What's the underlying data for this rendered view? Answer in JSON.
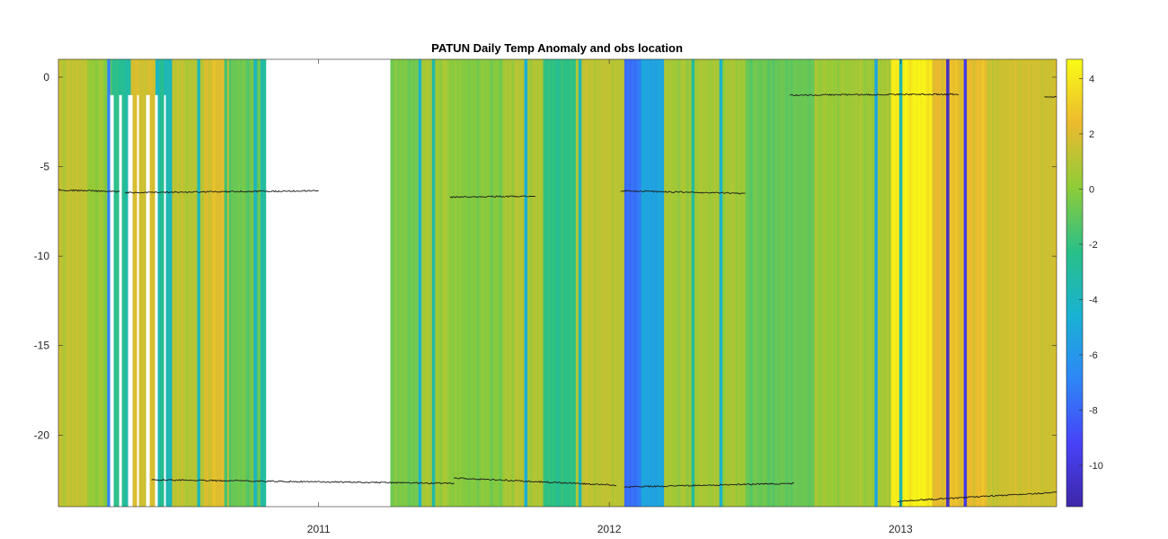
{
  "chart_data": {
    "type": "heatmap",
    "title": "PATUN Daily Temp Anomaly and obs location",
    "xlabel": "",
    "ylabel": "",
    "xlim": [
      "2010-02-08",
      "2013-07-16"
    ],
    "ylim": [
      -24,
      1
    ],
    "x_ticks": [
      {
        "date": "2011-01-01",
        "label": "2011"
      },
      {
        "date": "2012-01-01",
        "label": "2012"
      },
      {
        "date": "2013-01-01",
        "label": "2013"
      }
    ],
    "y_ticks": [
      0,
      -5,
      -10,
      -15,
      -20
    ],
    "colorbar": {
      "colormap": "parula",
      "range": [
        -11.5,
        4.7
      ],
      "ticks": [
        4,
        2,
        0,
        -2,
        -4,
        -6,
        -8,
        -10
      ],
      "colors": [
        "#3e26a8",
        "#4743f8",
        "#2e87f7",
        "#19b2d3",
        "#29c087",
        "#90cc38",
        "#ecba2e",
        "#f9fb15"
      ]
    },
    "anomaly_bands": [
      {
        "start": "2010-02-08",
        "end": "2010-03-15",
        "value": 1.2
      },
      {
        "start": "2010-03-15",
        "end": "2010-04-15",
        "value": 0.2
      },
      {
        "start": "2010-04-15",
        "end": "2010-05-10",
        "value": -2.6
      },
      {
        "start": "2010-05-10",
        "end": "2010-06-10",
        "value": 1.8
      },
      {
        "start": "2010-06-10",
        "end": "2010-07-01",
        "value": -3.5
      },
      {
        "start": "2010-07-01",
        "end": "2010-08-10",
        "value": 1.0
      },
      {
        "start": "2010-08-10",
        "end": "2010-09-10",
        "value": 2.0
      },
      {
        "start": "2010-09-10",
        "end": "2010-10-20",
        "value": -0.8
      },
      {
        "start": "2010-10-20",
        "end": "2010-10-27",
        "value": -3.0
      },
      {
        "start": "2011-04-01",
        "end": "2011-05-10",
        "value": -0.5
      },
      {
        "start": "2011-05-10",
        "end": "2011-06-15",
        "value": 0.5
      },
      {
        "start": "2011-06-15",
        "end": "2011-08-20",
        "value": -0.2
      },
      {
        "start": "2011-08-20",
        "end": "2011-10-10",
        "value": 0.8
      },
      {
        "start": "2011-10-10",
        "end": "2011-11-20",
        "value": -2.2
      },
      {
        "start": "2011-11-20",
        "end": "2012-01-20",
        "value": 1.2
      },
      {
        "start": "2012-01-20",
        "end": "2012-02-10",
        "value": -7.5
      },
      {
        "start": "2012-02-10",
        "end": "2012-03-10",
        "value": -5.2
      },
      {
        "start": "2012-03-10",
        "end": "2012-06-20",
        "value": 0.6
      },
      {
        "start": "2012-06-20",
        "end": "2012-09-15",
        "value": -0.8
      },
      {
        "start": "2012-09-15",
        "end": "2012-12-20",
        "value": 0.4
      },
      {
        "start": "2012-12-20",
        "end": "2013-02-10",
        "value": 4.2
      },
      {
        "start": "2013-02-10",
        "end": "2013-04-20",
        "value": 2.3
      },
      {
        "start": "2013-04-20",
        "end": "2013-07-16",
        "value": 1.6
      }
    ],
    "thin_stripes": [
      {
        "date": "2010-04-12",
        "value": -7.0
      },
      {
        "date": "2010-05-05",
        "value": -3.2
      },
      {
        "date": "2010-06-18",
        "value": -2.5
      },
      {
        "date": "2010-08-03",
        "value": -3.6
      },
      {
        "date": "2010-09-06",
        "value": -1.6
      },
      {
        "date": "2010-10-13",
        "value": -4.0
      },
      {
        "date": "2011-05-08",
        "value": -4.1
      },
      {
        "date": "2011-05-25",
        "value": -3.2
      },
      {
        "date": "2011-09-18",
        "value": -4.6
      },
      {
        "date": "2011-11-25",
        "value": -3.8
      },
      {
        "date": "2012-04-15",
        "value": -2.8
      },
      {
        "date": "2012-05-20",
        "value": -4.2
      },
      {
        "date": "2012-12-01",
        "value": -5.3
      },
      {
        "date": "2013-01-01",
        "value": -3.5
      },
      {
        "date": "2013-03-01",
        "value": -10.6
      },
      {
        "date": "2013-03-23",
        "value": -9.8
      }
    ],
    "missing_data": [
      {
        "start": "2010-10-27",
        "end": "2011-04-01",
        "y_top": 1,
        "y_bottom": -24
      },
      {
        "start": "2010-04-14",
        "end": "2010-06-24",
        "y_top": -1,
        "y_bottom": -24
      }
    ],
    "obs_location_series": [
      {
        "start": "2010-02-08",
        "end": "2010-04-26",
        "y_start": -6.3,
        "y_end": -6.4
      },
      {
        "start": "2010-05-03",
        "end": "2011-01-01",
        "y_start": -6.45,
        "y_end": -6.35
      },
      {
        "start": "2011-06-15",
        "end": "2011-09-30",
        "y_start": -6.7,
        "y_end": -6.65
      },
      {
        "start": "2012-01-15",
        "end": "2012-06-20",
        "y_start": -6.35,
        "y_end": -6.5
      },
      {
        "start": "2012-08-15",
        "end": "2013-03-15",
        "y_start": -1.0,
        "y_end": -0.95
      },
      {
        "start": "2013-07-01",
        "end": "2013-07-16",
        "y_start": -1.1,
        "y_end": -1.1
      },
      {
        "start": "2010-06-05",
        "end": "2011-06-20",
        "y_start": -22.5,
        "y_end": -22.7
      },
      {
        "start": "2011-06-20",
        "end": "2012-01-10",
        "y_start": -22.4,
        "y_end": -22.8
      },
      {
        "start": "2012-01-20",
        "end": "2012-08-20",
        "y_start": -22.9,
        "y_end": -22.7
      },
      {
        "start": "2012-12-28",
        "end": "2013-07-16",
        "y_start": -23.7,
        "y_end": -23.2
      }
    ]
  }
}
